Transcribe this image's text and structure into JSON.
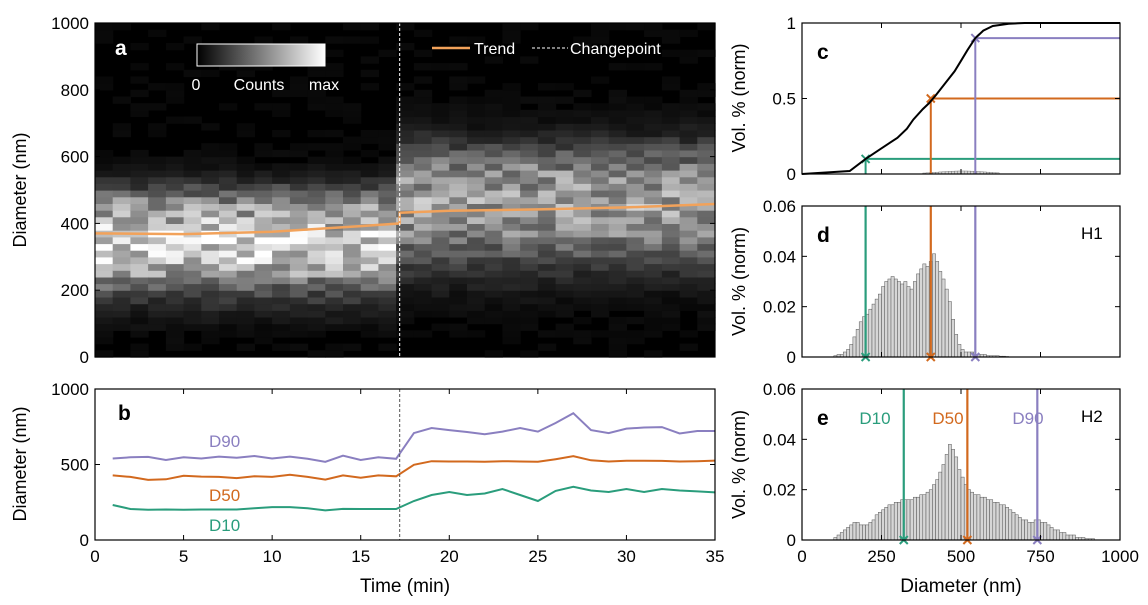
{
  "colors": {
    "d10": "#2a9d7c",
    "d50": "#d2691e",
    "d90": "#8a7fc0",
    "trend": "#f2a25a",
    "black": "#000000",
    "hist_fill": "#d6d6d6"
  },
  "chart_data": [
    {
      "id": "a",
      "type": "heatmap",
      "panel_label": "a",
      "xlabel": "",
      "ylabel": "Diameter (nm)",
      "xlim": [
        0,
        35
      ],
      "ylim": [
        0,
        1000
      ],
      "yticks": [
        "0",
        "200",
        "400",
        "600",
        "800",
        "1000"
      ],
      "colorbar": {
        "min_label": "0",
        "title": "Counts",
        "max_label": "max"
      },
      "changepoint_min": 17.2,
      "legend": {
        "position": "top-right",
        "entries": [
          "Trend",
          "Changepoint"
        ]
      },
      "trend": {
        "x": [
          0,
          5,
          10,
          15,
          17.2,
          17.2,
          20,
          25,
          30,
          35
        ],
        "y": [
          370,
          368,
          375,
          392,
          400,
          432,
          438,
          442,
          448,
          458
        ]
      },
      "intensity_note_peak_nm": [
        330,
        445
      ]
    },
    {
      "id": "b",
      "type": "line",
      "panel_label": "b",
      "xlabel": "Time (min)",
      "ylabel": "Diameter (nm)",
      "xlim": [
        0,
        35
      ],
      "ylim": [
        0,
        1000
      ],
      "xticks": [
        "0",
        "5",
        "10",
        "15",
        "20",
        "25",
        "30",
        "35"
      ],
      "yticks": [
        "0",
        "500",
        "1000"
      ],
      "changepoint_min": 17.2,
      "x": [
        1,
        2,
        3,
        4,
        5,
        6,
        7,
        8,
        9,
        10,
        11,
        12,
        13,
        14,
        15,
        16,
        17,
        18,
        19,
        20,
        21,
        22,
        23,
        24,
        25,
        26,
        27,
        28,
        29,
        30,
        31,
        32,
        33,
        34,
        35
      ],
      "series": [
        {
          "name": "D90",
          "values": [
            540,
            548,
            550,
            530,
            548,
            540,
            552,
            545,
            556,
            540,
            552,
            538,
            518,
            558,
            530,
            548,
            538,
            708,
            742,
            728,
            715,
            700,
            718,
            742,
            718,
            775,
            840,
            728,
            708,
            738,
            745,
            748,
            705,
            722,
            722
          ]
        },
        {
          "name": "D50",
          "values": [
            428,
            418,
            398,
            402,
            425,
            420,
            418,
            410,
            422,
            418,
            432,
            418,
            400,
            428,
            412,
            428,
            422,
            498,
            522,
            520,
            520,
            518,
            522,
            520,
            518,
            535,
            555,
            528,
            520,
            525,
            525,
            524,
            520,
            522,
            526
          ]
        },
        {
          "name": "D10",
          "values": [
            232,
            205,
            200,
            202,
            200,
            202,
            202,
            202,
            210,
            218,
            218,
            210,
            196,
            206,
            205,
            205,
            205,
            258,
            298,
            318,
            298,
            308,
            338,
            298,
            258,
            325,
            352,
            328,
            318,
            338,
            318,
            338,
            328,
            322,
            315
          ]
        }
      ]
    },
    {
      "id": "c",
      "type": "line",
      "panel_label": "c",
      "ylabel": "Vol. % (norm)",
      "xlim": [
        0,
        1000
      ],
      "ylim": [
        0,
        1
      ],
      "yticks": [
        "0",
        "0.5",
        "1"
      ],
      "cdf": {
        "x": [
          0,
          150,
          200,
          250,
          300,
          330,
          350,
          380,
          400,
          420,
          450,
          480,
          500,
          520,
          545,
          570,
          600,
          650,
          700,
          750,
          1000
        ],
        "y": [
          0,
          0.02,
          0.1,
          0.17,
          0.24,
          0.3,
          0.36,
          0.43,
          0.47,
          0.52,
          0.6,
          0.68,
          0.75,
          0.82,
          0.9,
          0.95,
          0.98,
          0.995,
          1.0,
          1.0,
          1.0
        ]
      },
      "markers": [
        {
          "name": "D10",
          "x": 200,
          "y": 0.1
        },
        {
          "name": "D50",
          "x": 405,
          "y": 0.5
        },
        {
          "name": "D90",
          "x": 545,
          "y": 0.9
        }
      ]
    },
    {
      "id": "d",
      "type": "bar",
      "panel_label": "d",
      "tag": "H1",
      "ylabel": "Vol. % (norm)",
      "xlim": [
        0,
        1000
      ],
      "ylim": [
        0,
        0.06
      ],
      "yticks": [
        "0",
        "0.02",
        "0.04",
        "0.06"
      ],
      "bin_width": 10,
      "bins_start": 100,
      "values": [
        0.0005,
        0.001,
        0.001,
        0.002,
        0.003,
        0.005,
        0.008,
        0.011,
        0.014,
        0.016,
        0.017,
        0.019,
        0.021,
        0.023,
        0.025,
        0.028,
        0.03,
        0.031,
        0.032,
        0.031,
        0.03,
        0.029,
        0.03,
        0.028,
        0.027,
        0.03,
        0.033,
        0.035,
        0.037,
        0.036,
        0.038,
        0.041,
        0.038,
        0.034,
        0.031,
        0.027,
        0.022,
        0.015,
        0.009,
        0.005,
        0.003,
        0.002,
        0.002,
        0.002,
        0.001,
        0.001,
        0.001,
        0.001,
        0.0005,
        0.0005,
        0.0005,
        0.0005,
        0.0003,
        0.0003,
        0.0002
      ],
      "markers": [
        {
          "name": "D10",
          "x": 200
        },
        {
          "name": "D50",
          "x": 405
        },
        {
          "name": "D90",
          "x": 545
        }
      ]
    },
    {
      "id": "e",
      "type": "bar",
      "panel_label": "e",
      "tag": "H2",
      "xlabel": "Diameter (nm)",
      "ylabel": "Vol. % (norm)",
      "xlim": [
        0,
        1000
      ],
      "ylim": [
        0,
        0.06
      ],
      "xticks": [
        "0",
        "250",
        "500",
        "750",
        "1000"
      ],
      "yticks": [
        "0",
        "0.02",
        "0.04",
        "0.06"
      ],
      "bin_width": 10,
      "bins_start": 100,
      "values": [
        0.001,
        0.002,
        0.003,
        0.004,
        0.005,
        0.006,
        0.007,
        0.007,
        0.006,
        0.006,
        0.006,
        0.007,
        0.008,
        0.01,
        0.011,
        0.012,
        0.013,
        0.014,
        0.014,
        0.015,
        0.015,
        0.016,
        0.016,
        0.016,
        0.016,
        0.017,
        0.017,
        0.018,
        0.018,
        0.019,
        0.02,
        0.022,
        0.024,
        0.027,
        0.03,
        0.034,
        0.038,
        0.036,
        0.033,
        0.028,
        0.025,
        0.022,
        0.02,
        0.019,
        0.018,
        0.018,
        0.017,
        0.017,
        0.016,
        0.016,
        0.015,
        0.015,
        0.014,
        0.014,
        0.013,
        0.012,
        0.011,
        0.01,
        0.009,
        0.008,
        0.008,
        0.007,
        0.007,
        0.008,
        0.008,
        0.007,
        0.007,
        0.006,
        0.005,
        0.004,
        0.004,
        0.003,
        0.003,
        0.002,
        0.002,
        0.002,
        0.001,
        0.001,
        0.001,
        0.0005,
        0.0005,
        0.0005
      ],
      "markers": [
        {
          "name": "D10",
          "x": 320
        },
        {
          "name": "D50",
          "x": 520
        },
        {
          "name": "D90",
          "x": 740
        }
      ]
    }
  ]
}
